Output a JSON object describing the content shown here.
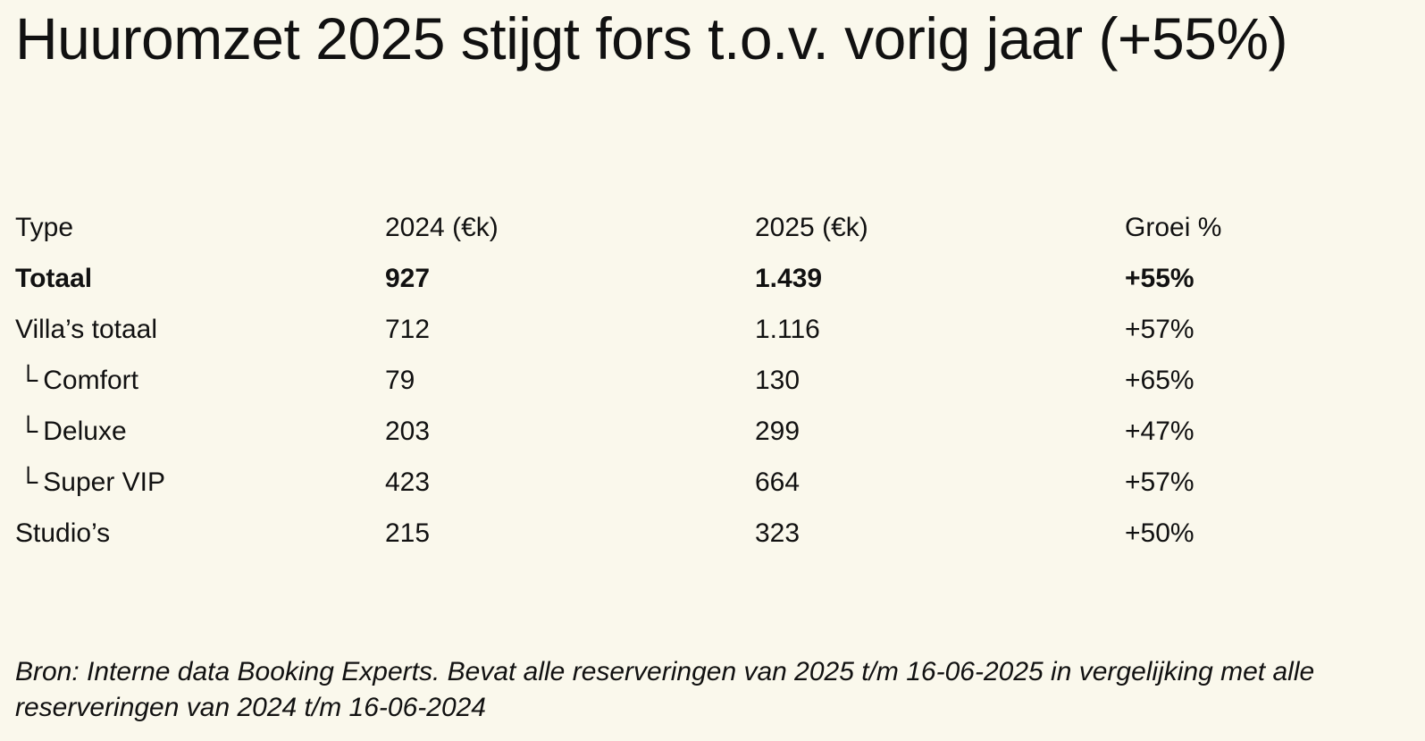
{
  "title": "Huuromzet 2025 stijgt fors t.o.v. vorig jaar (+55%)",
  "table": {
    "headers": [
      "Type",
      "2024 (€k)",
      "2025 (€k)",
      "Groei %"
    ],
    "rows": [
      {
        "type": "Totaal",
        "y2024": "927",
        "y2025": "1.439",
        "growth": "+55%",
        "bold": true,
        "sub_mark": ""
      },
      {
        "type": "Villa’s totaal",
        "y2024": "712",
        "y2025": "1.116",
        "growth": "+57%",
        "bold": false,
        "sub_mark": ""
      },
      {
        "type": "Comfort",
        "y2024": "79",
        "y2025": "130",
        "growth": "+65%",
        "bold": false,
        "sub_mark": "└"
      },
      {
        "type": "Deluxe",
        "y2024": "203",
        "y2025": "299",
        "growth": "+47%",
        "bold": false,
        "sub_mark": "└"
      },
      {
        "type": "Super VIP",
        "y2024": "423",
        "y2025": "664",
        "growth": "+57%",
        "bold": false,
        "sub_mark": "└"
      },
      {
        "type": "Studio’s",
        "y2024": "215",
        "y2025": "323",
        "growth": "+50%",
        "bold": false,
        "sub_mark": ""
      }
    ]
  },
  "source": "Bron: Interne data Booking Experts. Bevat alle reserveringen van 2025 t/m 16-06-2025 in vergelijking met alle reserveringen van 2024 t/m 16-06-2024"
}
